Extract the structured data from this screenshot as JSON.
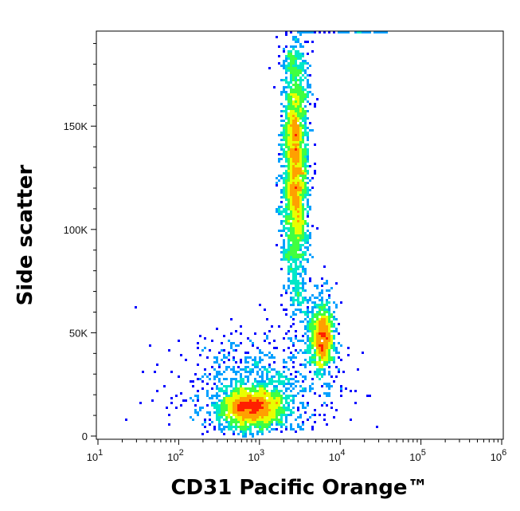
{
  "chart_data": {
    "type": "scatter",
    "subtype": "flow-cytometry density dot plot",
    "xlabel": "CD31 Pacific Orange™",
    "ylabel": "Side scatter",
    "x_scale": "log",
    "xlim": [
      10,
      1000000
    ],
    "ylim": [
      0,
      196000
    ],
    "x_ticks": [
      {
        "value": 10,
        "base": "10",
        "exp": "1"
      },
      {
        "value": 100,
        "base": "10",
        "exp": "2"
      },
      {
        "value": 1000,
        "base": "10",
        "exp": "3"
      },
      {
        "value": 10000,
        "base": "10",
        "exp": "4"
      },
      {
        "value": 100000,
        "base": "10",
        "exp": "5"
      },
      {
        "value": 1000000,
        "base": "10",
        "exp": "6"
      }
    ],
    "y_ticks": [
      {
        "value": 0,
        "label": "0"
      },
      {
        "value": 50000,
        "label": "50K"
      },
      {
        "value": 100000,
        "label": "100K"
      },
      {
        "value": 150000,
        "label": "150K"
      }
    ],
    "grid": false,
    "legend": "none",
    "color_scale": [
      "#0000ff",
      "#00a0ff",
      "#00e8c8",
      "#40ff40",
      "#e8ff00",
      "#ffa000",
      "#ff2000"
    ],
    "populations": [
      {
        "x_center": 2800,
        "x_spread_log10": 0.08,
        "y_center": 130000,
        "y_spread": 33000,
        "density": "high",
        "points": 2600
      },
      {
        "x_center": 6000,
        "x_spread_log10": 0.08,
        "y_center": 48000,
        "y_spread": 9000,
        "density": "medium",
        "points": 900
      },
      {
        "x_center": 800,
        "x_spread_log10": 0.22,
        "y_center": 14000,
        "y_spread": 5500,
        "density": "high",
        "points": 1500
      },
      {
        "x_center": 1000,
        "x_spread_log10": 0.5,
        "y_center": 22000,
        "y_spread": 15000,
        "density": "low",
        "points": 800
      }
    ]
  }
}
